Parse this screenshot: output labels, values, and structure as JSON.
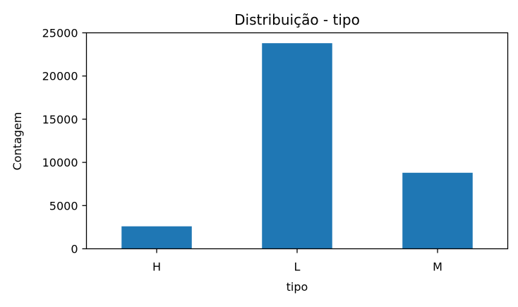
{
  "chart_data": {
    "type": "bar",
    "title": "Distribuição - tipo",
    "xlabel": "tipo",
    "ylabel": "Contagem",
    "categories": [
      "H",
      "L",
      "M"
    ],
    "values": [
      2600,
      23800,
      8800
    ],
    "ylim": [
      0,
      25000
    ],
    "yticks": [
      0,
      5000,
      10000,
      15000,
      20000,
      25000
    ],
    "grid": false,
    "legend": "none",
    "bar_color": "#1f77b4"
  }
}
